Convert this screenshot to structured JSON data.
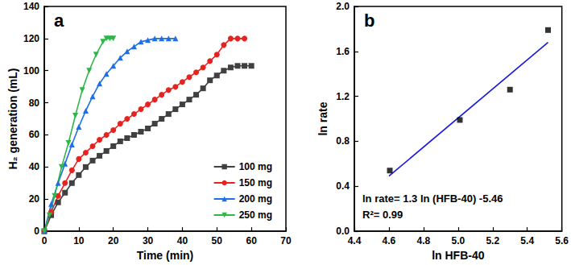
{
  "chart_data": [
    {
      "type": "line",
      "title": "a",
      "x_label": "Time (min)",
      "y_label": "H₂ generation (mL)",
      "xlim": [
        0,
        70
      ],
      "xticks": [
        0,
        10,
        20,
        30,
        40,
        50,
        60,
        70
      ],
      "ylim": [
        0,
        140
      ],
      "yticks": [
        0,
        20,
        40,
        60,
        80,
        100,
        120,
        140
      ],
      "grid": false,
      "legend": "lower right",
      "series": [
        {
          "name": "100 mg",
          "color": "#404040",
          "marker": "square",
          "x": [
            0,
            2,
            4,
            6,
            8,
            10,
            12,
            14,
            16,
            18,
            20,
            22,
            24,
            26,
            28,
            30,
            32,
            34,
            36,
            38,
            40,
            42,
            44,
            46,
            48,
            50,
            52,
            54,
            56,
            58,
            60
          ],
          "values": [
            0,
            10,
            18,
            24,
            30,
            35,
            40,
            44,
            47,
            50,
            53,
            56,
            58,
            60,
            62,
            64,
            67,
            70,
            73,
            76,
            79,
            82,
            85,
            89,
            94,
            97,
            100,
            102,
            103,
            103,
            103
          ]
        },
        {
          "name": "150 mg",
          "color": "#e8231f",
          "marker": "circle",
          "x": [
            0,
            2,
            4,
            6,
            8,
            10,
            12,
            14,
            16,
            18,
            20,
            22,
            24,
            26,
            28,
            30,
            32,
            34,
            36,
            38,
            40,
            42,
            44,
            46,
            48,
            50,
            52,
            54,
            56,
            58
          ],
          "values": [
            0,
            12,
            22,
            30,
            38,
            45,
            49,
            53,
            57,
            60,
            63,
            67,
            70,
            73,
            76,
            79,
            82,
            85,
            88,
            90,
            93,
            96,
            99,
            102,
            106,
            110,
            116,
            120,
            120,
            120
          ]
        },
        {
          "name": "200 mg",
          "color": "#1f6fe0",
          "marker": "triangle",
          "x": [
            0,
            2,
            4,
            6,
            8,
            10,
            12,
            14,
            16,
            18,
            20,
            22,
            24,
            26,
            28,
            30,
            32,
            34,
            36,
            38
          ],
          "values": [
            0,
            17,
            30,
            42,
            54,
            65,
            75,
            84,
            92,
            98,
            103,
            108,
            112,
            115,
            118,
            119,
            120,
            120,
            120,
            120
          ]
        },
        {
          "name": "250 mg",
          "color": "#2fb54a",
          "marker": "triangle-down",
          "x": [
            0,
            1.5,
            3,
            5,
            7,
            9,
            11,
            13,
            15,
            17,
            18,
            19,
            20
          ],
          "values": [
            0,
            10,
            22,
            40,
            55,
            72,
            88,
            100,
            110,
            118,
            120,
            120,
            120
          ]
        }
      ]
    },
    {
      "type": "scatter",
      "title": "b",
      "x_label": "ln HFB-40",
      "y_label": "ln rate",
      "xlim": [
        4.4,
        5.6
      ],
      "xticks": [
        4.4,
        4.6,
        4.8,
        {
          "value": 5,
          "label": "5.0"
        },
        5.2,
        5.4,
        5.6
      ],
      "ylim": [
        0,
        2
      ],
      "yticks": [
        {
          "value": 0,
          "label": "0.0"
        },
        0.4,
        0.8,
        1.2,
        1.6,
        {
          "value": 2,
          "label": "2.0"
        }
      ],
      "grid": false,
      "annotations": [
        "ln rate= 1.3 ln (HFB-40) -5.46",
        "R²= 0.99"
      ],
      "series": [
        {
          "type": "scatter",
          "color": "#000000",
          "marker": "square",
          "x": [
            4.605,
            5.01,
            5.3,
            5.52
          ],
          "values": [
            0.54,
            0.99,
            1.26,
            1.79
          ]
        },
        {
          "type": "line",
          "color": "#1a1adc",
          "line_style": "solid",
          "x": [
            4.6,
            5.52
          ],
          "values": [
            0.49,
            1.68
          ]
        }
      ]
    }
  ]
}
